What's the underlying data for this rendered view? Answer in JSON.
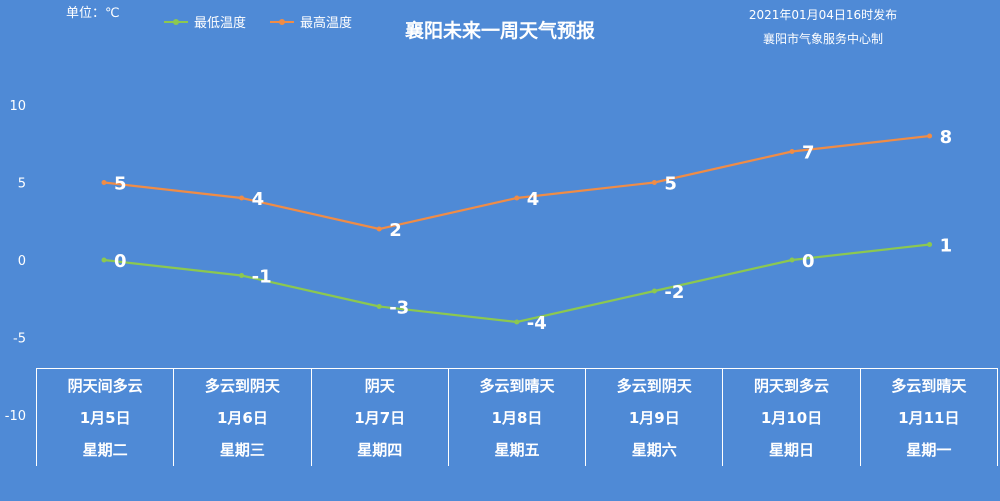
{
  "unit_label": "单位：℃",
  "title": "襄阳未来一周天气预报",
  "issue_time": "2021年01月04日16时发布",
  "issuer": "襄阳市气象服务中心制",
  "colors": {
    "min": "#8cc850",
    "max": "#f08c46",
    "background": "#4f8ad6"
  },
  "chart_data": {
    "type": "line",
    "title": "襄阳未来一周天气预报",
    "ylim": [
      -10,
      10
    ],
    "yticks": [
      10,
      5,
      0,
      -5,
      -10
    ],
    "categories": [
      "1月5日",
      "1月6日",
      "1月7日",
      "1月8日",
      "1月9日",
      "1月10日",
      "1月11日"
    ],
    "series": [
      {
        "name": "最低温度",
        "values": [
          0,
          -1,
          -3,
          -4,
          -2,
          0,
          1
        ]
      },
      {
        "name": "最高温度",
        "values": [
          5,
          4,
          2,
          4,
          5,
          7,
          8
        ]
      }
    ],
    "legend_position": "top-left"
  },
  "days": [
    {
      "weather": "阴天间多云",
      "date": "1月5日",
      "weekday": "星期二"
    },
    {
      "weather": "多云到阴天",
      "date": "1月6日",
      "weekday": "星期三"
    },
    {
      "weather": "阴天",
      "date": "1月7日",
      "weekday": "星期四"
    },
    {
      "weather": "多云到晴天",
      "date": "1月8日",
      "weekday": "星期五"
    },
    {
      "weather": "多云到阴天",
      "date": "1月9日",
      "weekday": "星期六"
    },
    {
      "weather": "阴天到多云",
      "date": "1月10日",
      "weekday": "星期日"
    },
    {
      "weather": "多云到晴天",
      "date": "1月11日",
      "weekday": "星期一"
    }
  ]
}
